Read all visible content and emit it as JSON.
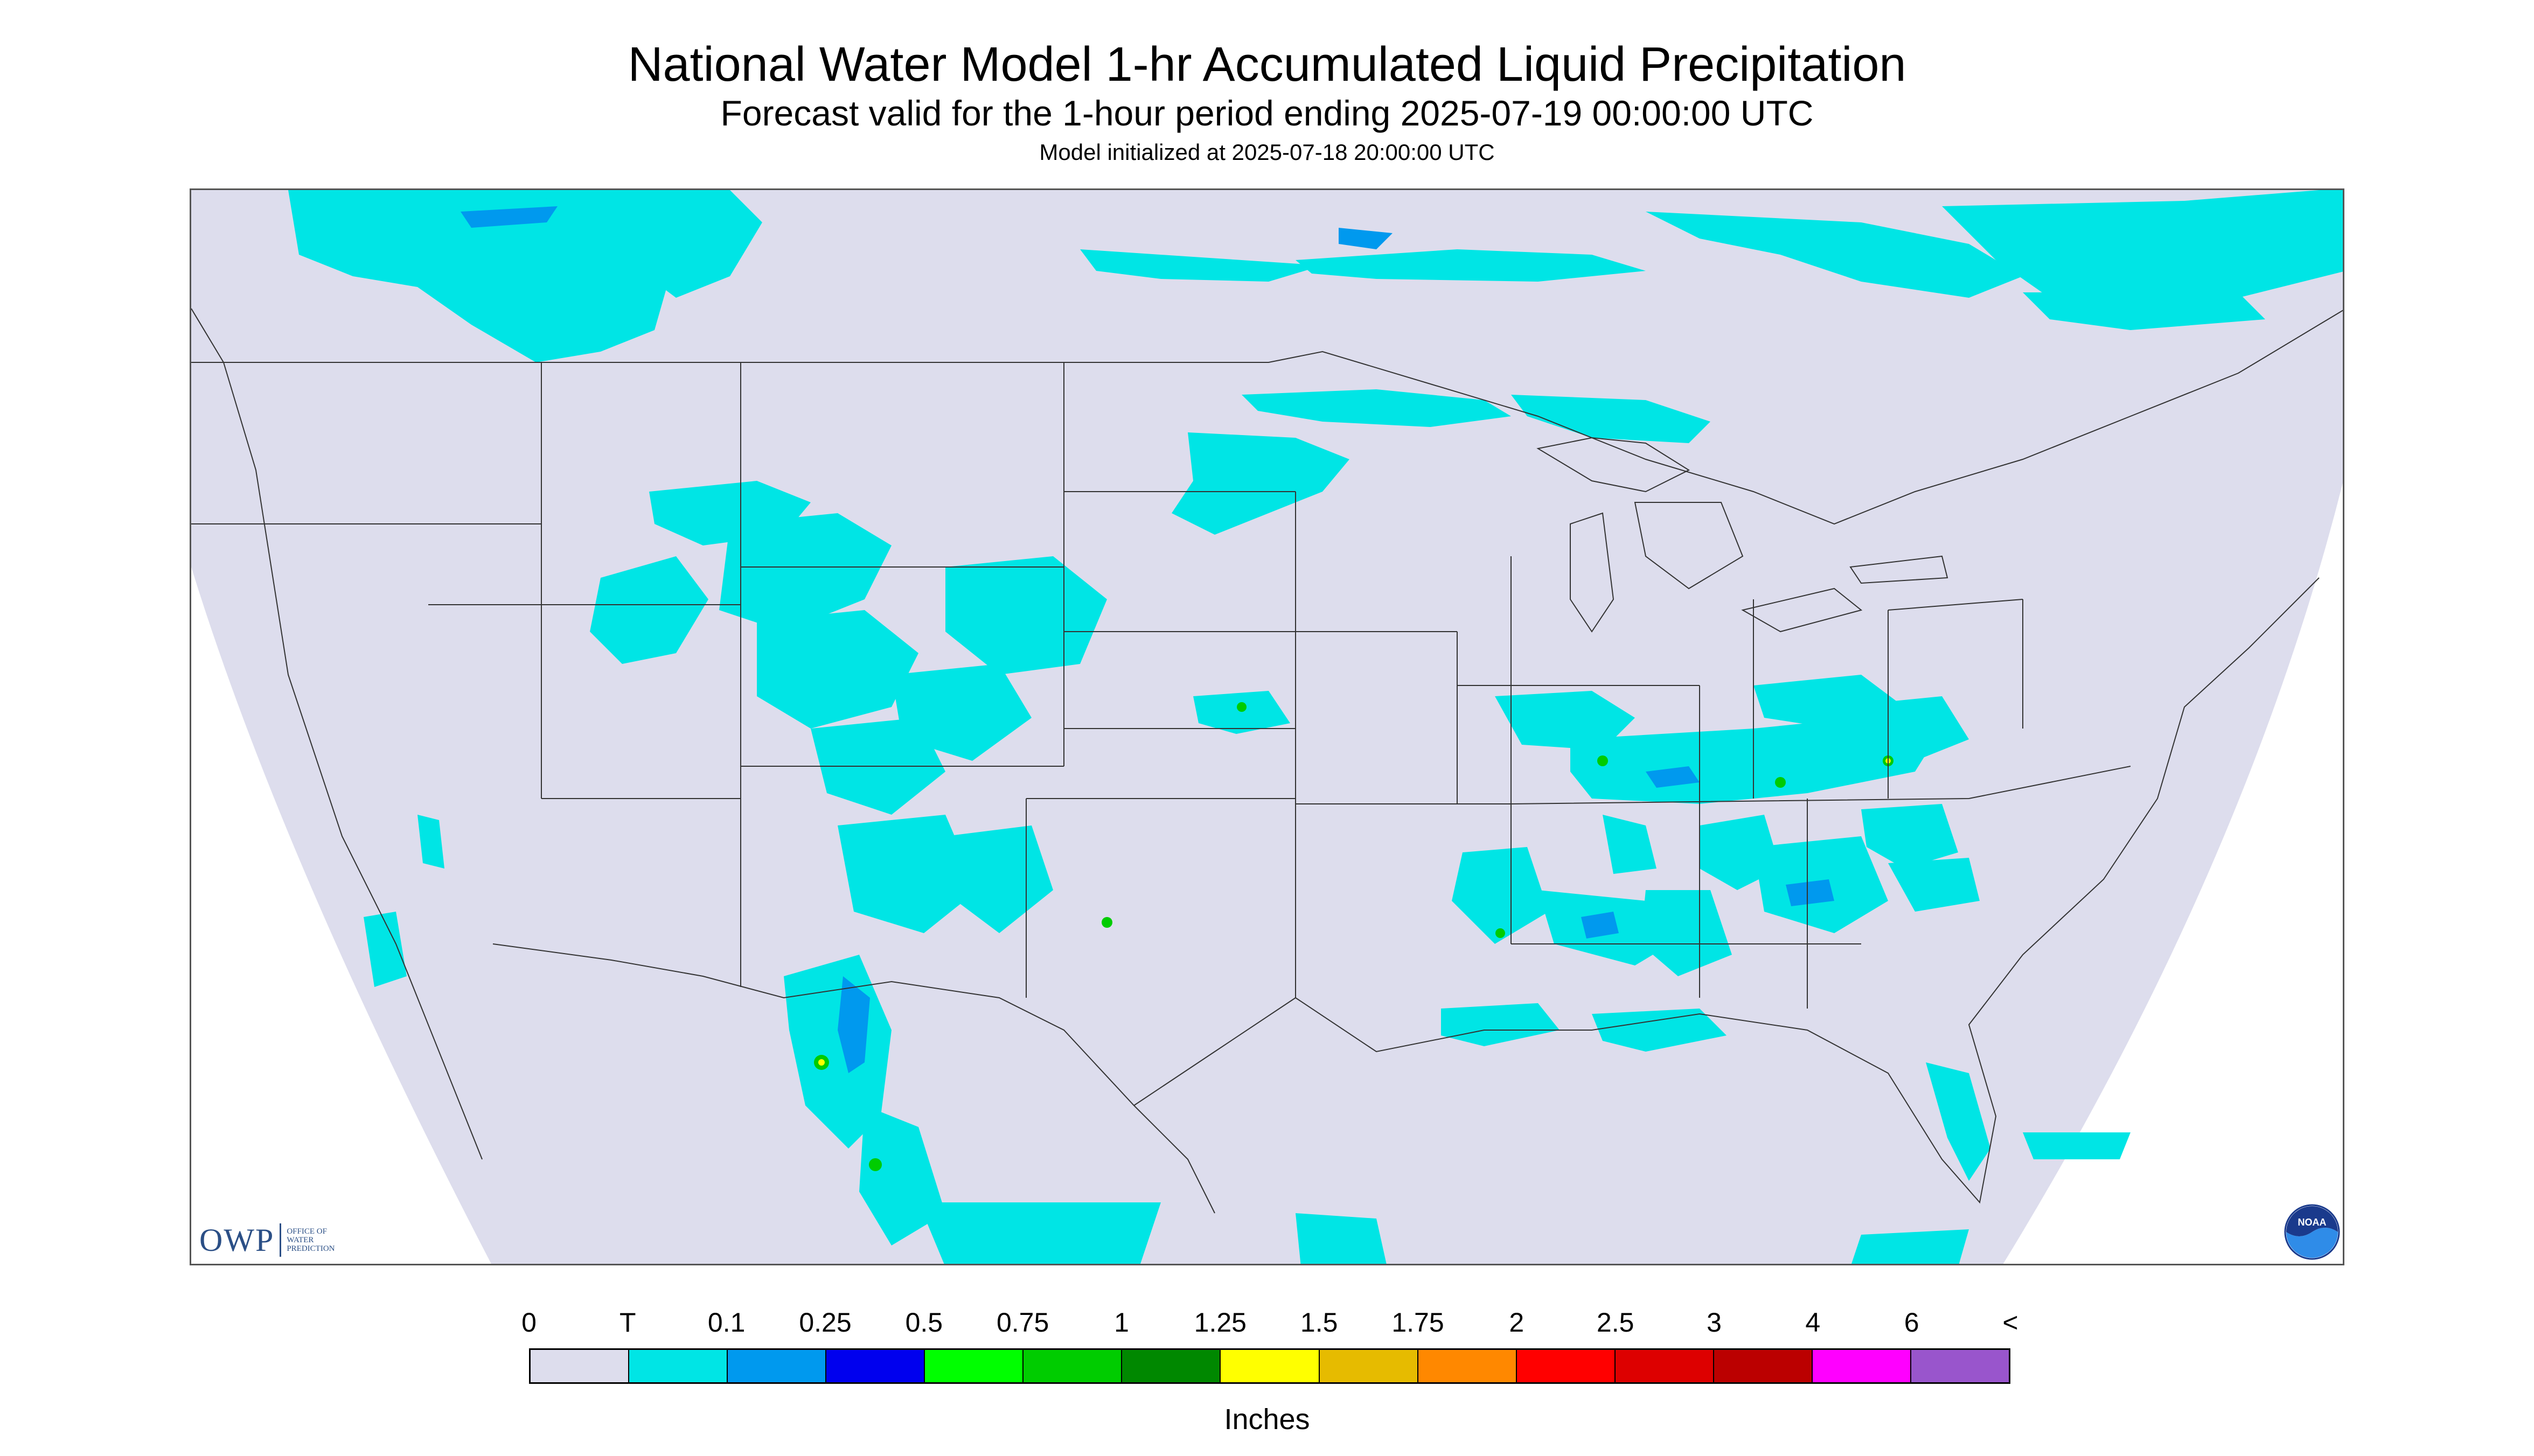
{
  "header": {
    "title": "National Water Model 1-hr Accumulated Liquid Precipitation",
    "subtitle": "Forecast valid for the 1-hour period ending 2025-07-19 00:00:00 UTC",
    "initialized": "Model initialized at 2025-07-18 20:00:00 UTC"
  },
  "map": {
    "domain_color": "#dddded",
    "outside_color": "#ffffff",
    "border_color": "#333333",
    "icons": [
      "map-domain",
      "state-boundaries",
      "precipitation-overlay"
    ]
  },
  "logos": {
    "owp": {
      "letters": "OWP",
      "lines": [
        "OFFICE OF",
        "WATER",
        "PREDICTION"
      ]
    },
    "noaa": {
      "text": "NOAA"
    }
  },
  "legend": {
    "unit": "Inches",
    "labels": [
      "0",
      "T",
      "0.1",
      "0.25",
      "0.5",
      "0.75",
      "1",
      "1.25",
      "1.5",
      "1.75",
      "2",
      "2.5",
      "3",
      "4",
      "6",
      "<"
    ],
    "colors": [
      "#dddded",
      "#00e5e5",
      "#0099ee",
      "#0000ee",
      "#00ff00",
      "#00cc00",
      "#008800",
      "#ffff00",
      "#e6bb00",
      "#ff8800",
      "#ff0000",
      "#dd0000",
      "#bb0000",
      "#ff00ff",
      "#9955cc"
    ]
  }
}
